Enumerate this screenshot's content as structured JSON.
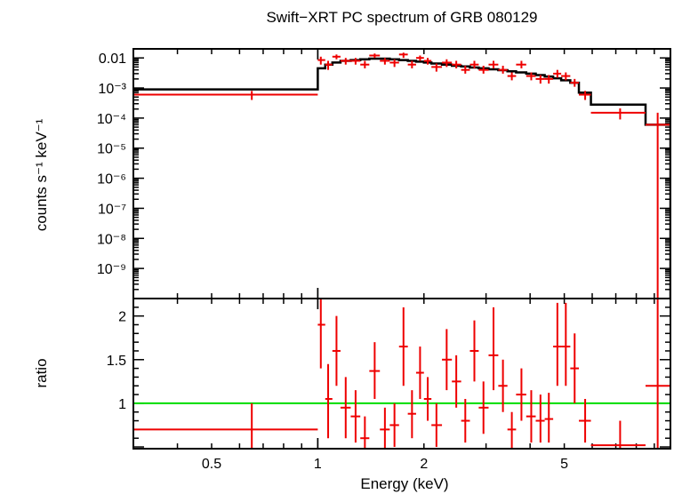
{
  "chart_data": [
    {
      "type": "scatter",
      "panel": "spectrum",
      "title": "Swift−XRT PC spectrum of GRB 080129",
      "ylabel": "counts s⁻¹ keV⁻¹",
      "xlabel": "",
      "x_scale": "log",
      "y_scale": "log",
      "xlim": [
        0.3,
        10
      ],
      "ylim": [
        1e-10,
        0.02
      ],
      "y_tick_labels": [
        {
          "value": 0.01,
          "label": "0.01"
        },
        {
          "value": 0.001,
          "label": "10⁻³"
        },
        {
          "value": 0.0001,
          "label": "10⁻⁴"
        },
        {
          "value": 1e-05,
          "label": "10⁻⁵"
        },
        {
          "value": 1e-06,
          "label": "10⁻⁶"
        },
        {
          "value": 1e-07,
          "label": "10⁻⁷"
        },
        {
          "value": 1e-08,
          "label": "10⁻⁸"
        },
        {
          "value": 1e-09,
          "label": "10⁻⁹"
        }
      ],
      "series": [
        {
          "color": "#ee0000",
          "style": "crosses",
          "points": [
            {
              "x": 0.65,
              "xlo": 0.3,
              "xhi": 1.0,
              "y": 0.0006,
              "ylo": 0.0004,
              "yhi": 0.0008
            },
            {
              "x": 1.02,
              "xlo": 1.0,
              "xhi": 1.05,
              "y": 0.0085,
              "ylo": 0.006,
              "yhi": 0.011
            },
            {
              "x": 1.07,
              "xlo": 1.05,
              "xhi": 1.1,
              "y": 0.006,
              "ylo": 0.004,
              "yhi": 0.008
            },
            {
              "x": 1.13,
              "xlo": 1.1,
              "xhi": 1.16,
              "y": 0.011,
              "ylo": 0.009,
              "yhi": 0.013
            },
            {
              "x": 1.2,
              "xlo": 1.16,
              "xhi": 1.24,
              "y": 0.008,
              "ylo": 0.006,
              "yhi": 0.01
            },
            {
              "x": 1.28,
              "xlo": 1.24,
              "xhi": 1.32,
              "y": 0.008,
              "ylo": 0.006,
              "yhi": 0.01
            },
            {
              "x": 1.36,
              "xlo": 1.32,
              "xhi": 1.4,
              "y": 0.006,
              "ylo": 0.0045,
              "yhi": 0.008
            },
            {
              "x": 1.45,
              "xlo": 1.4,
              "xhi": 1.5,
              "y": 0.012,
              "ylo": 0.01,
              "yhi": 0.014
            },
            {
              "x": 1.55,
              "xlo": 1.5,
              "xhi": 1.6,
              "y": 0.008,
              "ylo": 0.006,
              "yhi": 0.01
            },
            {
              "x": 1.65,
              "xlo": 1.6,
              "xhi": 1.7,
              "y": 0.007,
              "ylo": 0.005,
              "yhi": 0.009
            },
            {
              "x": 1.75,
              "xlo": 1.7,
              "xhi": 1.8,
              "y": 0.013,
              "ylo": 0.01,
              "yhi": 0.015
            },
            {
              "x": 1.85,
              "xlo": 1.8,
              "xhi": 1.9,
              "y": 0.006,
              "ylo": 0.0045,
              "yhi": 0.008
            },
            {
              "x": 1.95,
              "xlo": 1.9,
              "xhi": 2.0,
              "y": 0.01,
              "ylo": 0.008,
              "yhi": 0.012
            },
            {
              "x": 2.05,
              "xlo": 2.0,
              "xhi": 2.1,
              "y": 0.008,
              "ylo": 0.006,
              "yhi": 0.01
            },
            {
              "x": 2.17,
              "xlo": 2.1,
              "xhi": 2.25,
              "y": 0.005,
              "ylo": 0.0035,
              "yhi": 0.0065
            },
            {
              "x": 2.32,
              "xlo": 2.25,
              "xhi": 2.4,
              "y": 0.007,
              "ylo": 0.005,
              "yhi": 0.009
            },
            {
              "x": 2.47,
              "xlo": 2.4,
              "xhi": 2.55,
              "y": 0.006,
              "ylo": 0.0045,
              "yhi": 0.008
            },
            {
              "x": 2.62,
              "xlo": 2.55,
              "xhi": 2.7,
              "y": 0.004,
              "ylo": 0.003,
              "yhi": 0.0055
            },
            {
              "x": 2.78,
              "xlo": 2.7,
              "xhi": 2.86,
              "y": 0.006,
              "ylo": 0.0045,
              "yhi": 0.008
            },
            {
              "x": 2.95,
              "xlo": 2.86,
              "xhi": 3.05,
              "y": 0.004,
              "ylo": 0.003,
              "yhi": 0.0055
            },
            {
              "x": 3.15,
              "xlo": 3.05,
              "xhi": 3.25,
              "y": 0.006,
              "ylo": 0.0045,
              "yhi": 0.008
            },
            {
              "x": 3.35,
              "xlo": 3.25,
              "xhi": 3.45,
              "y": 0.004,
              "ylo": 0.003,
              "yhi": 0.0055
            },
            {
              "x": 3.55,
              "xlo": 3.45,
              "xhi": 3.65,
              "y": 0.0025,
              "ylo": 0.0018,
              "yhi": 0.0033
            },
            {
              "x": 3.78,
              "xlo": 3.65,
              "xhi": 3.9,
              "y": 0.006,
              "ylo": 0.0045,
              "yhi": 0.008
            },
            {
              "x": 4.03,
              "xlo": 3.9,
              "xhi": 4.15,
              "y": 0.0025,
              "ylo": 0.0018,
              "yhi": 0.0033
            },
            {
              "x": 4.28,
              "xlo": 4.15,
              "xhi": 4.4,
              "y": 0.002,
              "ylo": 0.0014,
              "yhi": 0.0027
            },
            {
              "x": 4.52,
              "xlo": 4.4,
              "xhi": 4.65,
              "y": 0.002,
              "ylo": 0.0014,
              "yhi": 0.0027
            },
            {
              "x": 4.78,
              "xlo": 4.65,
              "xhi": 4.9,
              "y": 0.003,
              "ylo": 0.0022,
              "yhi": 0.004
            },
            {
              "x": 5.05,
              "xlo": 4.9,
              "xhi": 5.2,
              "y": 0.0025,
              "ylo": 0.0018,
              "yhi": 0.0033
            },
            {
              "x": 5.35,
              "xlo": 5.2,
              "xhi": 5.5,
              "y": 0.0015,
              "ylo": 0.0011,
              "yhi": 0.002
            },
            {
              "x": 5.73,
              "xlo": 5.5,
              "xhi": 5.95,
              "y": 0.0006,
              "ylo": 0.0004,
              "yhi": 0.0008
            },
            {
              "x": 7.2,
              "xlo": 5.95,
              "xhi": 8.5,
              "y": 0.00015,
              "ylo": 9e-05,
              "yhi": 0.00021
            },
            {
              "x": 9.2,
              "xlo": 8.5,
              "xhi": 10.0,
              "y": 6e-05,
              "ylo": 1e-10,
              "yhi": 0.00015
            }
          ]
        },
        {
          "color": "#000000",
          "style": "model-histogram",
          "steps": [
            {
              "x0": 0.3,
              "x1": 1.0,
              "y": 0.0009
            },
            {
              "x0": 1.0,
              "x1": 1.05,
              "y": 0.0045
            },
            {
              "x0": 1.05,
              "x1": 1.1,
              "y": 0.006
            },
            {
              "x0": 1.1,
              "x1": 1.16,
              "y": 0.007
            },
            {
              "x0": 1.16,
              "x1": 1.24,
              "y": 0.008
            },
            {
              "x0": 1.24,
              "x1": 1.32,
              "y": 0.0085
            },
            {
              "x0": 1.32,
              "x1": 1.4,
              "y": 0.009
            },
            {
              "x0": 1.4,
              "x1": 1.5,
              "y": 0.0095
            },
            {
              "x0": 1.5,
              "x1": 1.6,
              "y": 0.0095
            },
            {
              "x0": 1.6,
              "x1": 1.7,
              "y": 0.009
            },
            {
              "x0": 1.7,
              "x1": 1.8,
              "y": 0.0085
            },
            {
              "x0": 1.8,
              "x1": 1.9,
              "y": 0.008
            },
            {
              "x0": 1.9,
              "x1": 2.0,
              "y": 0.0075
            },
            {
              "x0": 2.0,
              "x1": 2.1,
              "y": 0.007
            },
            {
              "x0": 2.1,
              "x1": 2.25,
              "y": 0.0065
            },
            {
              "x0": 2.25,
              "x1": 2.4,
              "y": 0.006
            },
            {
              "x0": 2.4,
              "x1": 2.55,
              "y": 0.0055
            },
            {
              "x0": 2.55,
              "x1": 2.7,
              "y": 0.0052
            },
            {
              "x0": 2.7,
              "x1": 2.86,
              "y": 0.0048
            },
            {
              "x0": 2.86,
              "x1": 3.05,
              "y": 0.0045
            },
            {
              "x0": 3.05,
              "x1": 3.25,
              "y": 0.0042
            },
            {
              "x0": 3.25,
              "x1": 3.45,
              "y": 0.0039
            },
            {
              "x0": 3.45,
              "x1": 3.65,
              "y": 0.0036
            },
            {
              "x0": 3.65,
              "x1": 3.9,
              "y": 0.0033
            },
            {
              "x0": 3.9,
              "x1": 4.15,
              "y": 0.003
            },
            {
              "x0": 4.15,
              "x1": 4.4,
              "y": 0.0027
            },
            {
              "x0": 4.4,
              "x1": 4.65,
              "y": 0.0024
            },
            {
              "x0": 4.65,
              "x1": 4.9,
              "y": 0.0021
            },
            {
              "x0": 4.9,
              "x1": 5.2,
              "y": 0.0018
            },
            {
              "x0": 5.2,
              "x1": 5.5,
              "y": 0.0015
            },
            {
              "x0": 5.5,
              "x1": 5.95,
              "y": 0.0007
            },
            {
              "x0": 5.95,
              "x1": 8.5,
              "y": 0.00028
            },
            {
              "x0": 8.5,
              "x1": 10.0,
              "y": 6e-05
            }
          ]
        }
      ]
    },
    {
      "type": "scatter",
      "panel": "ratio",
      "title": "",
      "ylabel": "ratio",
      "xlabel": "Energy (keV)",
      "x_scale": "log",
      "y_scale": "linear",
      "xlim": [
        0.3,
        10
      ],
      "ylim": [
        0.48,
        2.2
      ],
      "x_tick_labels": [
        {
          "value": 0.5,
          "label": "0.5"
        },
        {
          "value": 1,
          "label": "1"
        },
        {
          "value": 2,
          "label": "2"
        },
        {
          "value": 5,
          "label": "5"
        }
      ],
      "y_tick_labels": [
        {
          "value": 1,
          "label": "1"
        },
        {
          "value": 1.5,
          "label": "1.5"
        },
        {
          "value": 2,
          "label": "2"
        }
      ],
      "reference_line": {
        "y": 1,
        "color": "#00dd00"
      },
      "series": [
        {
          "color": "#ee0000",
          "style": "crosses",
          "points": [
            {
              "x": 0.65,
              "xlo": 0.3,
              "xhi": 1.0,
              "y": 0.7,
              "ylo": 0.48,
              "yhi": 1.0
            },
            {
              "x": 1.02,
              "xlo": 1.0,
              "xhi": 1.05,
              "y": 1.9,
              "ylo": 1.4,
              "yhi": 2.2
            },
            {
              "x": 1.07,
              "xlo": 1.05,
              "xhi": 1.1,
              "y": 1.05,
              "ylo": 0.6,
              "yhi": 1.45
            },
            {
              "x": 1.13,
              "xlo": 1.1,
              "xhi": 1.16,
              "y": 1.6,
              "ylo": 1.2,
              "yhi": 2.0
            },
            {
              "x": 1.2,
              "xlo": 1.16,
              "xhi": 1.24,
              "y": 0.95,
              "ylo": 0.6,
              "yhi": 1.3
            },
            {
              "x": 1.28,
              "xlo": 1.24,
              "xhi": 1.32,
              "y": 0.85,
              "ylo": 0.55,
              "yhi": 1.15
            },
            {
              "x": 1.36,
              "xlo": 1.32,
              "xhi": 1.4,
              "y": 0.6,
              "ylo": 0.48,
              "yhi": 0.85
            },
            {
              "x": 1.45,
              "xlo": 1.4,
              "xhi": 1.5,
              "y": 1.37,
              "ylo": 1.05,
              "yhi": 1.7
            },
            {
              "x": 1.55,
              "xlo": 1.5,
              "xhi": 1.6,
              "y": 0.7,
              "ylo": 0.48,
              "yhi": 0.95
            },
            {
              "x": 1.65,
              "xlo": 1.6,
              "xhi": 1.7,
              "y": 0.75,
              "ylo": 0.5,
              "yhi": 1.0
            },
            {
              "x": 1.75,
              "xlo": 1.7,
              "xhi": 1.8,
              "y": 1.65,
              "ylo": 1.2,
              "yhi": 2.1
            },
            {
              "x": 1.85,
              "xlo": 1.8,
              "xhi": 1.9,
              "y": 0.88,
              "ylo": 0.6,
              "yhi": 1.15
            },
            {
              "x": 1.95,
              "xlo": 1.9,
              "xhi": 2.0,
              "y": 1.35,
              "ylo": 1.05,
              "yhi": 1.65
            },
            {
              "x": 2.05,
              "xlo": 2.0,
              "xhi": 2.1,
              "y": 1.05,
              "ylo": 0.8,
              "yhi": 1.3
            },
            {
              "x": 2.17,
              "xlo": 2.1,
              "xhi": 2.25,
              "y": 0.75,
              "ylo": 0.5,
              "yhi": 1.0
            },
            {
              "x": 2.32,
              "xlo": 2.25,
              "xhi": 2.4,
              "y": 1.5,
              "ylo": 1.15,
              "yhi": 1.85
            },
            {
              "x": 2.47,
              "xlo": 2.4,
              "xhi": 2.55,
              "y": 1.25,
              "ylo": 0.95,
              "yhi": 1.55
            },
            {
              "x": 2.62,
              "xlo": 2.55,
              "xhi": 2.7,
              "y": 0.8,
              "ylo": 0.55,
              "yhi": 1.05
            },
            {
              "x": 2.78,
              "xlo": 2.7,
              "xhi": 2.86,
              "y": 1.6,
              "ylo": 1.25,
              "yhi": 1.95
            },
            {
              "x": 2.95,
              "xlo": 2.86,
              "xhi": 3.05,
              "y": 0.95,
              "ylo": 0.65,
              "yhi": 1.25
            },
            {
              "x": 3.15,
              "xlo": 3.05,
              "xhi": 3.25,
              "y": 1.55,
              "ylo": 1.15,
              "yhi": 2.1
            },
            {
              "x": 3.35,
              "xlo": 3.25,
              "xhi": 3.45,
              "y": 1.2,
              "ylo": 0.9,
              "yhi": 1.5
            },
            {
              "x": 3.55,
              "xlo": 3.45,
              "xhi": 3.65,
              "y": 0.7,
              "ylo": 0.48,
              "yhi": 0.9
            },
            {
              "x": 3.78,
              "xlo": 3.65,
              "xhi": 3.9,
              "y": 1.1,
              "ylo": 0.8,
              "yhi": 1.4
            },
            {
              "x": 4.03,
              "xlo": 3.9,
              "xhi": 4.15,
              "y": 0.85,
              "ylo": 0.55,
              "yhi": 1.15
            },
            {
              "x": 4.28,
              "xlo": 4.15,
              "xhi": 4.4,
              "y": 0.8,
              "ylo": 0.55,
              "yhi": 1.1
            },
            {
              "x": 4.52,
              "xlo": 4.4,
              "xhi": 4.65,
              "y": 0.82,
              "ylo": 0.55,
              "yhi": 1.12
            },
            {
              "x": 4.78,
              "xlo": 4.65,
              "xhi": 4.9,
              "y": 1.65,
              "ylo": 1.2,
              "yhi": 2.15
            },
            {
              "x": 5.05,
              "xlo": 4.9,
              "xhi": 5.2,
              "y": 1.65,
              "ylo": 1.2,
              "yhi": 2.15
            },
            {
              "x": 5.35,
              "xlo": 5.2,
              "xhi": 5.5,
              "y": 1.4,
              "ylo": 1.0,
              "yhi": 1.8
            },
            {
              "x": 5.73,
              "xlo": 5.5,
              "xhi": 5.95,
              "y": 0.8,
              "ylo": 0.55,
              "yhi": 1.05
            },
            {
              "x": 7.2,
              "xlo": 5.95,
              "xhi": 8.5,
              "y": 0.52,
              "ylo": 0.48,
              "yhi": 0.8
            },
            {
              "x": 9.2,
              "xlo": 8.5,
              "xhi": 10.0,
              "y": 1.2,
              "ylo": 0.48,
              "yhi": 2.2
            }
          ]
        }
      ]
    }
  ]
}
